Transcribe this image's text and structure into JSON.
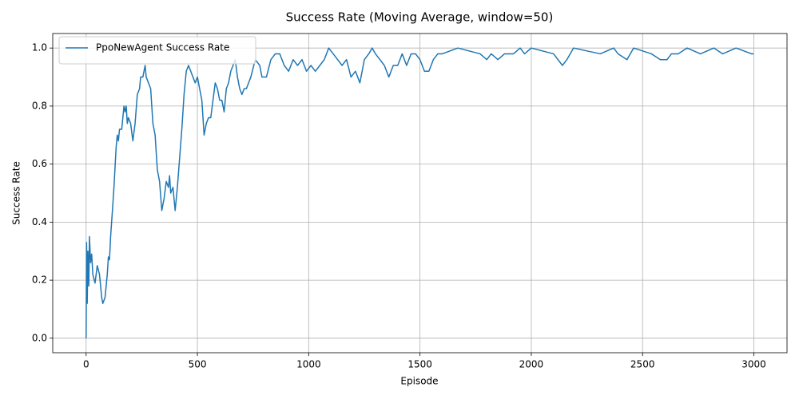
{
  "chart_data": {
    "type": "line",
    "title": "Success Rate (Moving Average, window=50)",
    "xlabel": "Episode",
    "ylabel": "Success Rate",
    "xlim": [
      -150,
      3149
    ],
    "ylim": [
      -0.05,
      1.05
    ],
    "xticks": [
      0,
      500,
      1000,
      1500,
      2000,
      2500,
      3000
    ],
    "yticks": [
      {
        "value": 0,
        "label": "0.0"
      },
      0.2,
      0.4,
      0.6,
      0.8,
      {
        "value": 1,
        "label": "1.0"
      }
    ],
    "grid": true,
    "legend": "upper left",
    "x": [
      0,
      2,
      5,
      8,
      12,
      15,
      20,
      25,
      30,
      40,
      50,
      60,
      70,
      75,
      85,
      95,
      100,
      105,
      110,
      120,
      125,
      135,
      140,
      145,
      150,
      160,
      170,
      175,
      180,
      185,
      190,
      200,
      210,
      220,
      230,
      240,
      245,
      255,
      265,
      270,
      280,
      290,
      300,
      310,
      320,
      330,
      340,
      350,
      360,
      370,
      375,
      380,
      390,
      400,
      410,
      420,
      430,
      440,
      450,
      460,
      470,
      480,
      490,
      500,
      510,
      520,
      530,
      540,
      550,
      560,
      570,
      580,
      590,
      600,
      610,
      620,
      630,
      640,
      650,
      660,
      670,
      680,
      690,
      700,
      710,
      720,
      740,
      760,
      780,
      790,
      810,
      830,
      850,
      870,
      890,
      910,
      930,
      950,
      970,
      990,
      1010,
      1030,
      1050,
      1070,
      1090,
      1110,
      1130,
      1150,
      1170,
      1190,
      1210,
      1230,
      1250,
      1270,
      1285,
      1300,
      1320,
      1340,
      1360,
      1380,
      1400,
      1420,
      1440,
      1460,
      1480,
      1500,
      1520,
      1540,
      1560,
      1580,
      1600,
      1670,
      1770,
      1800,
      1820,
      1850,
      1880,
      1920,
      1950,
      1970,
      2000,
      2100,
      2140,
      2160,
      2190,
      2310,
      2370,
      2390,
      2430,
      2460,
      2540,
      2580,
      2610,
      2630,
      2660,
      2700,
      2760,
      2820,
      2860,
      2920,
      2990,
      2999
    ],
    "series": [
      {
        "name": "PpoNewAgent Success Rate",
        "color": "#1f77b4",
        "values": [
          0.0,
          0.33,
          0.12,
          0.3,
          0.18,
          0.35,
          0.26,
          0.29,
          0.22,
          0.19,
          0.25,
          0.22,
          0.14,
          0.12,
          0.14,
          0.22,
          0.28,
          0.27,
          0.35,
          0.46,
          0.52,
          0.66,
          0.7,
          0.68,
          0.72,
          0.72,
          0.8,
          0.78,
          0.8,
          0.74,
          0.76,
          0.74,
          0.68,
          0.74,
          0.84,
          0.86,
          0.9,
          0.9,
          0.94,
          0.9,
          0.88,
          0.86,
          0.74,
          0.7,
          0.58,
          0.54,
          0.44,
          0.48,
          0.54,
          0.52,
          0.56,
          0.5,
          0.52,
          0.44,
          0.52,
          0.62,
          0.72,
          0.84,
          0.92,
          0.94,
          0.92,
          0.9,
          0.88,
          0.9,
          0.86,
          0.82,
          0.7,
          0.74,
          0.76,
          0.76,
          0.82,
          0.88,
          0.86,
          0.82,
          0.82,
          0.78,
          0.86,
          0.88,
          0.92,
          0.94,
          0.96,
          0.9,
          0.86,
          0.84,
          0.86,
          0.86,
          0.9,
          0.96,
          0.94,
          0.9,
          0.9,
          0.96,
          0.98,
          0.98,
          0.94,
          0.92,
          0.96,
          0.94,
          0.96,
          0.92,
          0.94,
          0.92,
          0.94,
          0.96,
          1.0,
          0.98,
          0.96,
          0.94,
          0.96,
          0.9,
          0.92,
          0.88,
          0.96,
          0.98,
          1.0,
          0.98,
          0.96,
          0.94,
          0.9,
          0.94,
          0.94,
          0.98,
          0.94,
          0.98,
          0.98,
          0.96,
          0.92,
          0.92,
          0.96,
          0.98,
          0.98,
          1.0,
          0.98,
          0.96,
          0.98,
          0.96,
          0.98,
          0.98,
          1.0,
          0.98,
          1.0,
          0.98,
          0.94,
          0.96,
          1.0,
          0.98,
          1.0,
          0.98,
          0.96,
          1.0,
          0.98,
          0.96,
          0.96,
          0.98,
          0.98,
          1.0,
          0.98,
          1.0,
          0.98,
          1.0,
          0.98,
          0.98
        ]
      }
    ]
  }
}
